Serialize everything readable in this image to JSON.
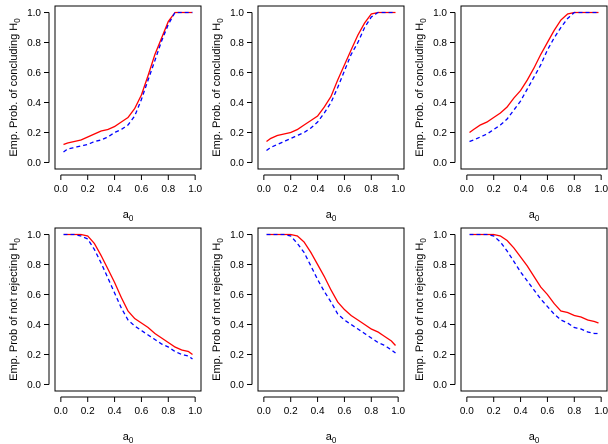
{
  "figure": {
    "background": "#ffffff",
    "series_styles": [
      {
        "color": "#ff0000",
        "dash": "solid"
      },
      {
        "color": "#0000ff",
        "dash": "dashed"
      }
    ]
  },
  "chart_data": [
    {
      "type": "line",
      "xlabel": "a",
      "xlabel_sub": "0",
      "ylabel": "Emp. Prob. of concluding H",
      "ylabel_sub": "0",
      "xlim": [
        0,
        1
      ],
      "ylim": [
        0,
        1
      ],
      "xticks": [
        "0.0",
        "0.2",
        "0.4",
        "0.6",
        "0.8",
        "1.0"
      ],
      "yticks": [
        "0.0",
        "0.2",
        "0.4",
        "0.6",
        "0.8",
        "1.0"
      ],
      "grid": false,
      "series": [
        {
          "x": [
            0.02,
            0.05,
            0.1,
            0.15,
            0.2,
            0.25,
            0.3,
            0.35,
            0.4,
            0.45,
            0.5,
            0.55,
            0.6,
            0.65,
            0.7,
            0.75,
            0.8,
            0.85,
            0.9,
            0.95,
            0.98
          ],
          "values": [
            0.12,
            0.13,
            0.14,
            0.15,
            0.17,
            0.19,
            0.21,
            0.22,
            0.24,
            0.27,
            0.3,
            0.36,
            0.45,
            0.58,
            0.72,
            0.83,
            0.94,
            1.0,
            1.0,
            1.0,
            1.0
          ]
        },
        {
          "x": [
            0.02,
            0.05,
            0.1,
            0.15,
            0.2,
            0.25,
            0.3,
            0.35,
            0.4,
            0.45,
            0.5,
            0.55,
            0.6,
            0.65,
            0.7,
            0.75,
            0.8,
            0.85,
            0.9,
            0.95,
            0.98
          ],
          "values": [
            0.07,
            0.09,
            0.1,
            0.11,
            0.12,
            0.14,
            0.15,
            0.17,
            0.2,
            0.22,
            0.25,
            0.31,
            0.42,
            0.55,
            0.68,
            0.81,
            0.92,
            1.0,
            1.0,
            1.0,
            1.0
          ]
        }
      ]
    },
    {
      "type": "line",
      "xlabel": "a",
      "xlabel_sub": "0",
      "ylabel": "Emp. Prob. of concluding H",
      "ylabel_sub": "0",
      "xlim": [
        0,
        1
      ],
      "ylim": [
        0,
        1
      ],
      "xticks": [
        "0.0",
        "0.2",
        "0.4",
        "0.6",
        "0.8",
        "1.0"
      ],
      "yticks": [
        "0.0",
        "0.2",
        "0.4",
        "0.6",
        "0.8",
        "1.0"
      ],
      "grid": false,
      "series": [
        {
          "x": [
            0.02,
            0.05,
            0.1,
            0.15,
            0.2,
            0.25,
            0.3,
            0.35,
            0.4,
            0.45,
            0.5,
            0.55,
            0.6,
            0.65,
            0.7,
            0.75,
            0.8,
            0.85,
            0.9,
            0.95,
            0.98
          ],
          "values": [
            0.14,
            0.16,
            0.18,
            0.19,
            0.2,
            0.22,
            0.25,
            0.28,
            0.31,
            0.37,
            0.44,
            0.55,
            0.65,
            0.75,
            0.85,
            0.93,
            0.99,
            1.0,
            1.0,
            1.0,
            1.0
          ]
        },
        {
          "x": [
            0.02,
            0.05,
            0.1,
            0.15,
            0.2,
            0.25,
            0.3,
            0.35,
            0.4,
            0.45,
            0.5,
            0.55,
            0.6,
            0.65,
            0.7,
            0.75,
            0.8,
            0.85,
            0.9,
            0.95,
            0.98
          ],
          "values": [
            0.08,
            0.1,
            0.12,
            0.14,
            0.16,
            0.18,
            0.2,
            0.23,
            0.27,
            0.33,
            0.4,
            0.5,
            0.61,
            0.72,
            0.8,
            0.9,
            0.97,
            1.0,
            1.0,
            1.0,
            1.0
          ]
        }
      ]
    },
    {
      "type": "line",
      "xlabel": "a",
      "xlabel_sub": "0",
      "ylabel": "Emp. Prob. of concluding H",
      "ylabel_sub": "0",
      "xlim": [
        0,
        1
      ],
      "ylim": [
        0,
        1
      ],
      "xticks": [
        "0.0",
        "0.2",
        "0.4",
        "0.6",
        "0.8",
        "1.0"
      ],
      "yticks": [
        "0.0",
        "0.2",
        "0.4",
        "0.6",
        "0.8",
        "1.0"
      ],
      "grid": false,
      "series": [
        {
          "x": [
            0.02,
            0.05,
            0.1,
            0.15,
            0.2,
            0.25,
            0.3,
            0.35,
            0.4,
            0.45,
            0.5,
            0.55,
            0.6,
            0.65,
            0.7,
            0.75,
            0.8,
            0.85,
            0.9,
            0.95,
            0.98
          ],
          "values": [
            0.2,
            0.22,
            0.25,
            0.27,
            0.3,
            0.33,
            0.37,
            0.43,
            0.48,
            0.55,
            0.63,
            0.72,
            0.8,
            0.88,
            0.95,
            0.99,
            1.0,
            1.0,
            1.0,
            1.0,
            1.0
          ]
        },
        {
          "x": [
            0.02,
            0.05,
            0.1,
            0.15,
            0.2,
            0.25,
            0.3,
            0.35,
            0.4,
            0.45,
            0.5,
            0.55,
            0.6,
            0.65,
            0.7,
            0.75,
            0.8,
            0.85,
            0.9,
            0.95,
            0.98
          ],
          "values": [
            0.14,
            0.15,
            0.17,
            0.19,
            0.22,
            0.25,
            0.29,
            0.35,
            0.41,
            0.49,
            0.57,
            0.65,
            0.75,
            0.83,
            0.9,
            0.96,
            1.0,
            1.0,
            1.0,
            1.0,
            1.0
          ]
        }
      ]
    },
    {
      "type": "line",
      "xlabel": "a",
      "xlabel_sub": "0",
      "ylabel": "Emp. Prob of not rejecting H",
      "ylabel_sub": "0",
      "xlim": [
        0,
        1
      ],
      "ylim": [
        0,
        1
      ],
      "xticks": [
        "0.0",
        "0.2",
        "0.4",
        "0.6",
        "0.8",
        "1.0"
      ],
      "yticks": [
        "0.0",
        "0.2",
        "0.4",
        "0.6",
        "0.8",
        "1.0"
      ],
      "grid": false,
      "series": [
        {
          "x": [
            0.02,
            0.1,
            0.15,
            0.2,
            0.25,
            0.3,
            0.35,
            0.4,
            0.45,
            0.5,
            0.55,
            0.6,
            0.65,
            0.7,
            0.75,
            0.8,
            0.85,
            0.9,
            0.95,
            0.98
          ],
          "values": [
            1.0,
            1.0,
            1.0,
            0.99,
            0.94,
            0.86,
            0.77,
            0.68,
            0.58,
            0.49,
            0.44,
            0.41,
            0.38,
            0.34,
            0.31,
            0.28,
            0.25,
            0.23,
            0.22,
            0.2
          ]
        },
        {
          "x": [
            0.02,
            0.1,
            0.15,
            0.2,
            0.25,
            0.3,
            0.35,
            0.4,
            0.45,
            0.5,
            0.55,
            0.6,
            0.65,
            0.7,
            0.75,
            0.8,
            0.85,
            0.9,
            0.95,
            0.98
          ],
          "values": [
            1.0,
            1.0,
            0.99,
            0.97,
            0.9,
            0.81,
            0.71,
            0.61,
            0.51,
            0.43,
            0.39,
            0.36,
            0.33,
            0.3,
            0.27,
            0.25,
            0.22,
            0.2,
            0.19,
            0.17
          ]
        }
      ]
    },
    {
      "type": "line",
      "xlabel": "a",
      "xlabel_sub": "0",
      "ylabel": "Emp. Prob of not rejecting H",
      "ylabel_sub": "0",
      "xlim": [
        0,
        1
      ],
      "ylim": [
        0,
        1
      ],
      "xticks": [
        "0.0",
        "0.2",
        "0.4",
        "0.6",
        "0.8",
        "1.0"
      ],
      "yticks": [
        "0.0",
        "0.2",
        "0.4",
        "0.6",
        "0.8",
        "1.0"
      ],
      "grid": false,
      "series": [
        {
          "x": [
            0.02,
            0.1,
            0.15,
            0.2,
            0.25,
            0.3,
            0.35,
            0.4,
            0.45,
            0.5,
            0.55,
            0.6,
            0.65,
            0.7,
            0.75,
            0.8,
            0.85,
            0.9,
            0.95,
            0.98
          ],
          "values": [
            1.0,
            1.0,
            1.0,
            1.0,
            0.99,
            0.95,
            0.88,
            0.8,
            0.72,
            0.63,
            0.55,
            0.5,
            0.46,
            0.43,
            0.4,
            0.37,
            0.35,
            0.32,
            0.29,
            0.26
          ]
        },
        {
          "x": [
            0.02,
            0.1,
            0.15,
            0.2,
            0.25,
            0.3,
            0.35,
            0.4,
            0.45,
            0.5,
            0.55,
            0.6,
            0.65,
            0.7,
            0.75,
            0.8,
            0.85,
            0.9,
            0.95,
            0.98
          ],
          "values": [
            1.0,
            1.0,
            1.0,
            0.99,
            0.94,
            0.88,
            0.79,
            0.7,
            0.62,
            0.55,
            0.47,
            0.43,
            0.4,
            0.37,
            0.34,
            0.31,
            0.28,
            0.26,
            0.23,
            0.21
          ]
        }
      ]
    },
    {
      "type": "line",
      "xlabel": "a",
      "xlabel_sub": "0",
      "ylabel": "Emp. Prob of not rejecting H",
      "ylabel_sub": "0",
      "xlim": [
        0,
        1
      ],
      "ylim": [
        0,
        1
      ],
      "xticks": [
        "0.0",
        "0.2",
        "0.4",
        "0.6",
        "0.8",
        "1.0"
      ],
      "yticks": [
        "0.0",
        "0.2",
        "0.4",
        "0.6",
        "0.8",
        "1.0"
      ],
      "grid": false,
      "series": [
        {
          "x": [
            0.02,
            0.1,
            0.15,
            0.2,
            0.25,
            0.3,
            0.35,
            0.4,
            0.45,
            0.5,
            0.55,
            0.6,
            0.65,
            0.7,
            0.75,
            0.8,
            0.85,
            0.9,
            0.95,
            0.98
          ],
          "values": [
            1.0,
            1.0,
            1.0,
            1.0,
            0.99,
            0.96,
            0.91,
            0.85,
            0.79,
            0.72,
            0.65,
            0.6,
            0.54,
            0.49,
            0.48,
            0.46,
            0.45,
            0.43,
            0.42,
            0.41
          ]
        },
        {
          "x": [
            0.02,
            0.1,
            0.15,
            0.2,
            0.25,
            0.3,
            0.35,
            0.4,
            0.45,
            0.5,
            0.55,
            0.6,
            0.65,
            0.7,
            0.75,
            0.8,
            0.85,
            0.9,
            0.95,
            0.98
          ],
          "values": [
            1.0,
            1.0,
            1.0,
            0.99,
            0.95,
            0.89,
            0.82,
            0.75,
            0.69,
            0.63,
            0.57,
            0.52,
            0.47,
            0.43,
            0.41,
            0.38,
            0.37,
            0.35,
            0.34,
            0.34
          ]
        }
      ]
    }
  ]
}
